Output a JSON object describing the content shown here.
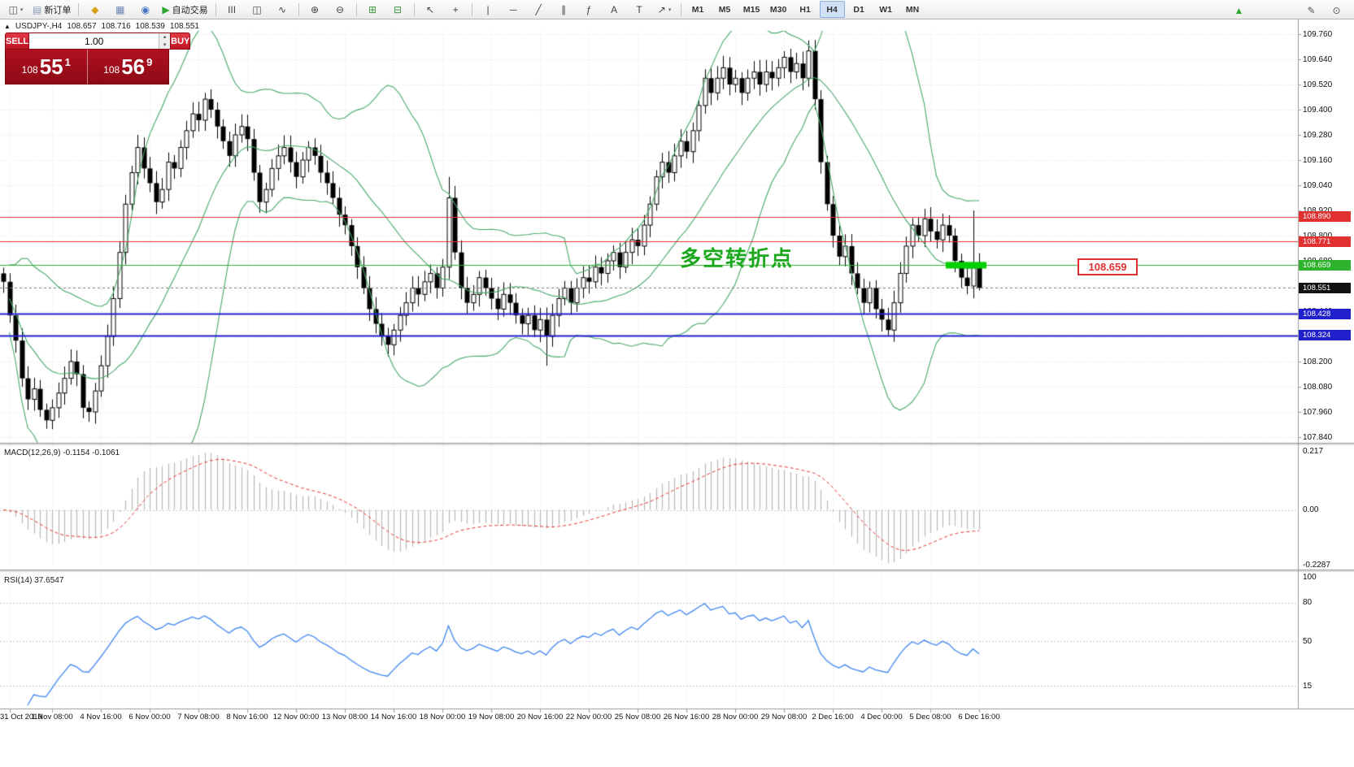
{
  "toolbar": {
    "groups": [
      {
        "items": [
          {
            "name": "new-chart-button",
            "glyph": "◫",
            "color": "#555",
            "caret": "▾"
          },
          {
            "name": "new-order-button",
            "glyph": "▤",
            "color": "#8899bb",
            "label": "新订单"
          }
        ]
      },
      {
        "items": [
          {
            "name": "metaeditor-button",
            "glyph": "◆",
            "color": "#dba017"
          },
          {
            "name": "profiles-button",
            "glyph": "▦",
            "color": "#6f87b5"
          },
          {
            "name": "data-window-button",
            "glyph": "◉",
            "color": "#3f72c0"
          },
          {
            "name": "auto-trading-button",
            "glyph": "▶",
            "color": "#2ca52c",
            "label": "自动交易"
          }
        ]
      },
      {
        "items": [
          {
            "name": "bar-chart-button",
            "glyph": "III",
            "color": "#444"
          },
          {
            "name": "candlestick-chart-button",
            "glyph": "◫",
            "color": "#444"
          },
          {
            "name": "line-chart-button",
            "glyph": "∿",
            "color": "#444"
          }
        ]
      },
      {
        "items": [
          {
            "name": "zoom-in-button",
            "glyph": "⊕",
            "color": "#444"
          },
          {
            "name": "zoom-out-button",
            "glyph": "⊖",
            "color": "#444"
          }
        ]
      },
      {
        "items": [
          {
            "name": "auto-scroll-button",
            "glyph": "⊞",
            "color": "#3f9a3f"
          },
          {
            "name": "chart-shift-button",
            "glyph": "⊟",
            "color": "#3f9a3f"
          }
        ]
      },
      {
        "items": [
          {
            "name": "cursor-button",
            "glyph": "↖",
            "color": "#444"
          },
          {
            "name": "crosshair-button",
            "glyph": "+",
            "color": "#444"
          }
        ]
      },
      {
        "items": [
          {
            "name": "vertical-line-button",
            "glyph": "|",
            "color": "#444"
          },
          {
            "name": "horizontal-line-button",
            "glyph": "─",
            "color": "#444"
          },
          {
            "name": "trendline-button",
            "glyph": "╱",
            "color": "#444"
          },
          {
            "name": "channel-button",
            "glyph": "∥",
            "color": "#444"
          },
          {
            "name": "fibonacci-button",
            "glyph": "ƒ",
            "color": "#444"
          },
          {
            "name": "text-button",
            "glyph": "A",
            "color": "#444"
          },
          {
            "name": "label-button",
            "glyph": "T",
            "color": "#444"
          },
          {
            "name": "arrows-button",
            "glyph": "↗",
            "color": "#444",
            "caret": "▾"
          }
        ]
      }
    ],
    "timeframes": {
      "items": [
        "M1",
        "M5",
        "M15",
        "M30",
        "H1",
        "H4",
        "D1",
        "W1",
        "MN"
      ],
      "active": "H4"
    },
    "expand": {
      "name": "scroll-to-end-icon",
      "glyph": "▲",
      "color": "#2ca52c"
    },
    "right": [
      {
        "name": "edit-icon",
        "glyph": "✎",
        "color": "#555"
      },
      {
        "name": "magnifier-icon",
        "glyph": "⊙",
        "color": "#555"
      }
    ]
  },
  "chart_header": {
    "collapse_icon": "▲",
    "symbol": "USDJPY-,H4",
    "open": "108.657",
    "high": "108.716",
    "low": "108.539",
    "close": "108.551"
  },
  "trade_panel": {
    "sell_label": "SELL",
    "buy_label": "BUY",
    "volume": "1.00",
    "vol_up_icon": "▴",
    "vol_dn_icon": "▾",
    "sell_prefix": "108",
    "sell_main": "55",
    "sell_sup": "1",
    "buy_prefix": "108",
    "buy_main": "56",
    "buy_sup": "9"
  },
  "annotation": {
    "text": "多空转折点",
    "color": "#1ca81c"
  },
  "price_box": {
    "text": "108.659",
    "color": "#e03030"
  },
  "axis": {
    "y_ticks": [
      "109.760",
      "109.640",
      "109.520",
      "109.400",
      "109.280",
      "109.160",
      "109.040",
      "108.920",
      "108.800",
      "108.680",
      "108.560",
      "108.440",
      "108.320",
      "108.200",
      "108.080",
      "107.960",
      "107.840"
    ],
    "x_ticks": [
      {
        "i": 1,
        "label": "31 Oct 2019"
      },
      {
        "i": 8,
        "label": "1 Nov 08:00"
      },
      {
        "i": 16,
        "label": "4 Nov 16:00"
      },
      {
        "i": 24,
        "label": "6 Nov 00:00"
      },
      {
        "i": 32,
        "label": "7 Nov 08:00"
      },
      {
        "i": 40,
        "label": "8 Nov 16:00"
      },
      {
        "i": 48,
        "label": "12 Nov 00:00"
      },
      {
        "i": 56,
        "label": "13 Nov 08:00"
      },
      {
        "i": 64,
        "label": "14 Nov 16:00"
      },
      {
        "i": 72,
        "label": "18 Nov 00:00"
      },
      {
        "i": 80,
        "label": "19 Nov 08:00"
      },
      {
        "i": 88,
        "label": "20 Nov 16:00"
      },
      {
        "i": 96,
        "label": "22 Nov 00:00"
      },
      {
        "i": 104,
        "label": "25 Nov 08:00"
      },
      {
        "i": 112,
        "label": "26 Nov 16:00"
      },
      {
        "i": 120,
        "label": "28 Nov 00:00"
      },
      {
        "i": 128,
        "label": "29 Nov 08:00"
      },
      {
        "i": 136,
        "label": "2 Dec 16:00"
      },
      {
        "i": 144,
        "label": "4 Dec 00:00"
      },
      {
        "i": 152,
        "label": "5 Dec 08:00"
      },
      {
        "i": 160,
        "label": "6 Dec 16:00"
      }
    ]
  },
  "levels": {
    "hlines": [
      {
        "price": 108.89,
        "label": "108.890",
        "color": "#e03030",
        "width": 1
      },
      {
        "price": 108.771,
        "label": "108.771",
        "color": "#e03030",
        "width": 1
      },
      {
        "price": 108.659,
        "label": "108.659",
        "color": "#2db32d",
        "width": 1
      },
      {
        "price": 108.428,
        "label": "108.428",
        "color": "#2020cc",
        "width": 2
      },
      {
        "price": 108.324,
        "label": "108.324",
        "color": "#2020cc",
        "width": 2
      }
    ],
    "bid": {
      "price": 108.551,
      "label": "108.551",
      "color": "#111111"
    },
    "highlight": {
      "price": 108.659,
      "color": "#00cf00"
    }
  },
  "indicator_panels": {
    "macd_header": "MACD(12,26,9) -0.1154 -0.1061",
    "macd_ticks": [
      "0.217",
      "0.00",
      "-0.2287"
    ],
    "rsi_header": "RSI(14) 37.6547",
    "rsi_levels": [
      "100",
      "80",
      "50",
      "15"
    ]
  },
  "chart_data": {
    "type": "candlestick",
    "symbol": "USDJPY",
    "period": "H4",
    "ylim": [
      107.84,
      109.76
    ],
    "open0": 108.62,
    "closes": [
      108.58,
      108.42,
      108.3,
      108.12,
      108.02,
      108.07,
      107.97,
      107.92,
      107.98,
      108.05,
      108.12,
      108.2,
      108.14,
      107.98,
      107.96,
      108.06,
      108.18,
      108.32,
      108.5,
      108.72,
      108.95,
      109.1,
      109.22,
      109.12,
      109.05,
      108.96,
      109.02,
      109.15,
      109.12,
      109.22,
      109.3,
      109.38,
      109.35,
      109.45,
      109.4,
      109.32,
      109.25,
      109.18,
      109.28,
      109.32,
      109.26,
      109.1,
      108.96,
      109.02,
      109.12,
      109.18,
      109.22,
      109.15,
      109.08,
      109.16,
      109.22,
      109.18,
      109.1,
      109.05,
      108.98,
      108.9,
      108.85,
      108.75,
      108.65,
      108.55,
      108.45,
      108.38,
      108.32,
      108.28,
      108.35,
      108.42,
      108.48,
      108.55,
      108.52,
      108.58,
      108.62,
      108.55,
      108.65,
      108.98,
      108.72,
      108.55,
      108.48,
      108.52,
      108.6,
      108.55,
      108.5,
      108.45,
      108.52,
      108.48,
      108.42,
      108.38,
      108.42,
      108.35,
      108.4,
      108.32,
      108.42,
      108.5,
      108.55,
      108.48,
      108.55,
      108.6,
      108.58,
      108.65,
      108.62,
      108.68,
      108.72,
      108.65,
      108.72,
      108.78,
      108.75,
      108.85,
      108.95,
      109.08,
      109.15,
      109.1,
      109.18,
      109.25,
      109.2,
      109.3,
      109.42,
      109.55,
      109.48,
      109.55,
      109.6,
      109.52,
      109.55,
      109.48,
      109.55,
      109.58,
      109.52,
      109.58,
      109.55,
      109.6,
      109.65,
      109.58,
      109.62,
      109.55,
      109.68,
      109.45,
      109.15,
      108.95,
      108.8,
      108.7,
      108.75,
      108.62,
      108.55,
      108.48,
      108.55,
      108.45,
      108.4,
      108.35,
      108.48,
      108.62,
      108.75,
      108.85,
      108.8,
      108.88,
      108.82,
      108.78,
      108.85,
      108.8,
      108.68,
      108.6,
      108.56,
      108.657,
      108.551
    ],
    "wick_hi": {
      "22": 109.28,
      "33": 109.48,
      "73": 109.08,
      "132": 109.73,
      "159": 108.92,
      "160": 108.716
    },
    "wick_lo": {
      "7": 107.88,
      "13": 107.93,
      "64": 108.23,
      "89": 108.18,
      "145": 108.32,
      "160": 108.539
    },
    "bollinger": {
      "period": 20,
      "deviation": 2
    },
    "colors": {
      "candle_up": "#ffffff",
      "candle_down": "#000000",
      "candle_border": "#000000",
      "bollinger": "#45a869",
      "macd_hist": "#b8b8b8",
      "macd_signal": "#e53030",
      "rsi": "#3d85f0"
    }
  }
}
